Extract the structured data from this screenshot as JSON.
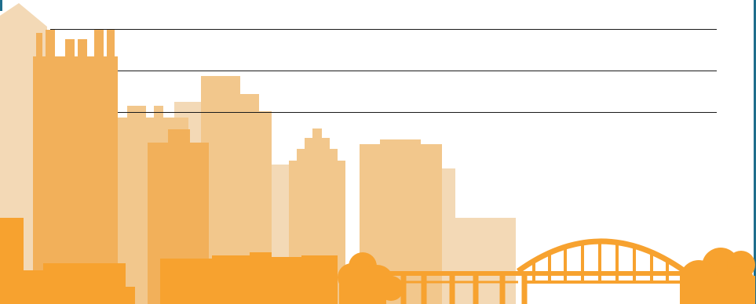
{
  "colors": {
    "pale_orange": "#f3d9b6",
    "light_orange": "#f2c78c",
    "mid_orange": "#f2b05a",
    "orange": "#f7a22f",
    "frame_blue": "#1f6e8c",
    "rule": "#1a1a1a",
    "background": "#ffffff"
  },
  "decoration": {
    "illustration": "city-skyline-with-arch-bridge-icon",
    "writing_lines": 3
  }
}
